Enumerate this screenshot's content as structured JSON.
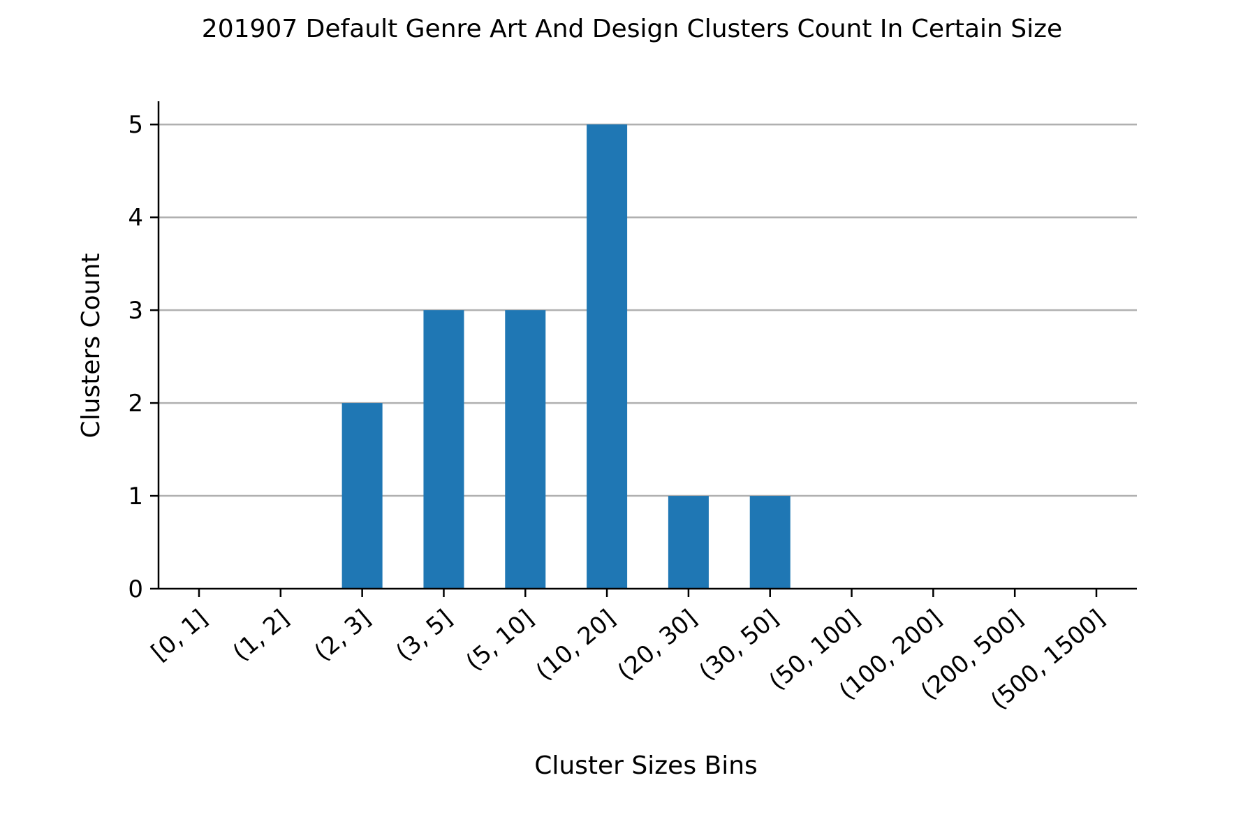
{
  "chart_data": {
    "type": "bar",
    "title": "201907 Default Genre Art And Design Clusters Count In Certain Size",
    "xlabel": "Cluster Sizes Bins",
    "ylabel": "Clusters Count",
    "categories": [
      "[0, 1]",
      "(1, 2]",
      "(2, 3]",
      "(3, 5]",
      "(5, 10]",
      "(10, 20]",
      "(20, 30]",
      "(30, 50]",
      "(50, 100]",
      "(100, 200]",
      "(200, 500]",
      "(500, 1500]"
    ],
    "values": [
      0,
      0,
      2,
      3,
      3,
      5,
      1,
      1,
      0,
      0,
      0,
      0
    ],
    "ylim": [
      0,
      5.25
    ],
    "yticks": [
      0,
      1,
      2,
      3,
      4,
      5
    ],
    "grid": "y",
    "bar_color": "#1f77b4",
    "x_tick_rotation": -40
  }
}
